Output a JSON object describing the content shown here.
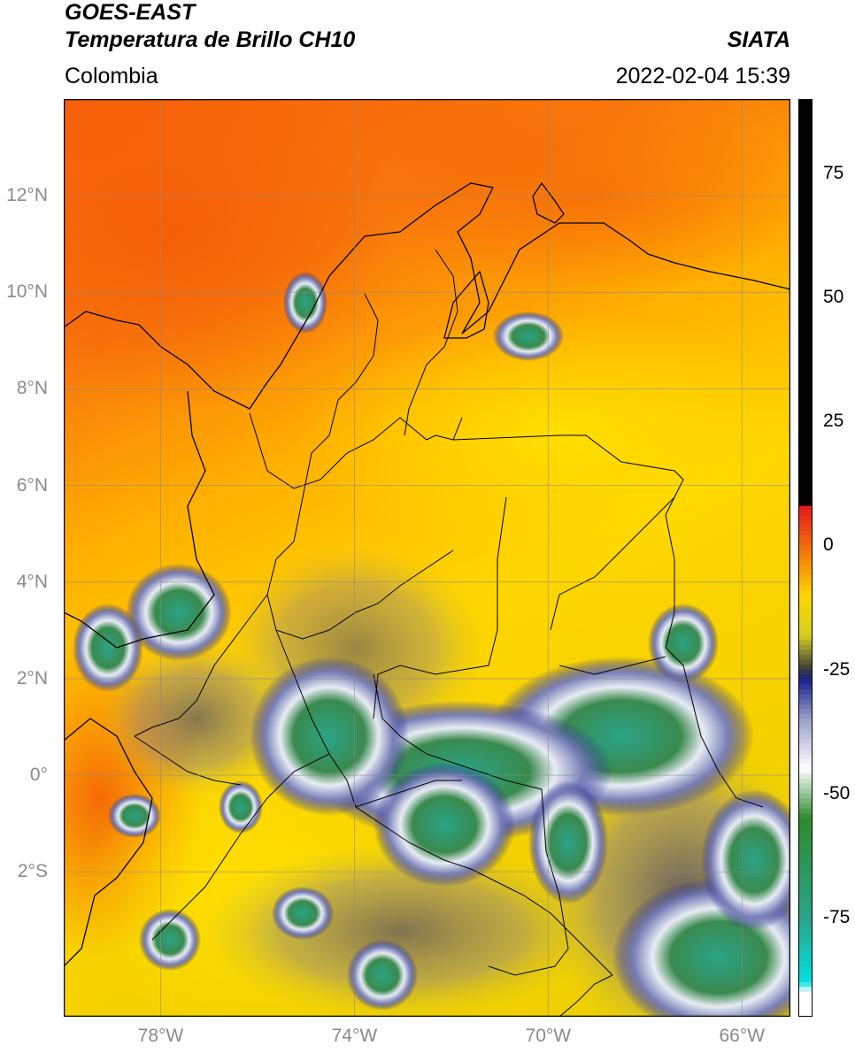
{
  "header": {
    "satellite": "GOES-EAST",
    "product": "Temperatura de Brillo CH10",
    "brand": "SIATA",
    "region": "Colombia",
    "datetime": "2022-02-04 15:39"
  },
  "map": {
    "extent": {
      "lon_min": -80,
      "lon_max": -65,
      "lat_min": -5,
      "lat_max": 14
    },
    "lat_ticks": [
      {
        "value": 12,
        "label": "12°N"
      },
      {
        "value": 10,
        "label": "10°N"
      },
      {
        "value": 8,
        "label": "8°N"
      },
      {
        "value": 6,
        "label": "6°N"
      },
      {
        "value": 4,
        "label": "4°N"
      },
      {
        "value": 2,
        "label": "2°N"
      },
      {
        "value": 0,
        "label": "0°"
      },
      {
        "value": -2,
        "label": "2°S"
      }
    ],
    "lon_ticks": [
      {
        "value": -78,
        "label": "78°W"
      },
      {
        "value": -74,
        "label": "74°W"
      },
      {
        "value": -70,
        "label": "70°W"
      },
      {
        "value": -66,
        "label": "66°W"
      }
    ],
    "gridlines": true
  },
  "colorbar": {
    "min": -95,
    "max": 90,
    "ticks": [
      {
        "value": 75,
        "label": "75"
      },
      {
        "value": 50,
        "label": "50"
      },
      {
        "value": 25,
        "label": "25"
      },
      {
        "value": 0,
        "label": "0"
      },
      {
        "value": -25,
        "label": "-25"
      },
      {
        "value": -50,
        "label": "-50"
      },
      {
        "value": -75,
        "label": "-75"
      }
    ],
    "stops": [
      {
        "value": 90,
        "color": "#000000"
      },
      {
        "value": 8,
        "color": "#000000"
      },
      {
        "value": 7.9,
        "color": "#e31a1c"
      },
      {
        "value": 0,
        "color": "#f26a0c"
      },
      {
        "value": -10,
        "color": "#ffd400"
      },
      {
        "value": -18,
        "color": "#d8d020"
      },
      {
        "value": -25,
        "color": "#3a3a3a"
      },
      {
        "value": -27,
        "color": "#1a1f8c"
      },
      {
        "value": -35,
        "color": "#9aa0c8"
      },
      {
        "value": -45,
        "color": "#ffffff"
      },
      {
        "value": -55,
        "color": "#2e8b2e"
      },
      {
        "value": -75,
        "color": "#2aa488"
      },
      {
        "value": -88,
        "color": "#00e0e0"
      },
      {
        "value": -90,
        "color": "#ffffff"
      },
      {
        "value": -95,
        "color": "#ffffff"
      }
    ]
  },
  "palette": {
    "warm_sea": "#f86a0c",
    "mid": "#ffb800",
    "land_warm": "#ffd600",
    "cloud_edge": "#1e2290",
    "cloud_white": "#e8ecf4",
    "cloud_cold": "#3a8a4e",
    "cloud_coldest": "#2aa488"
  }
}
